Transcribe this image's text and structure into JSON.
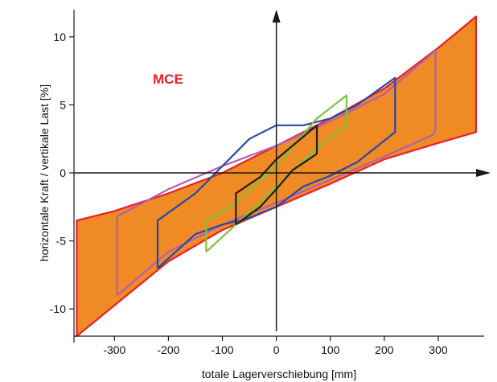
{
  "chart_data": {
    "type": "line",
    "title": "",
    "xlabel": "totale Lagerverschiebung [mm]",
    "ylabel": "horizontale Kraft / vertikale Last  [%]",
    "xlim": [
      -375,
      385
    ],
    "ylim": [
      -12,
      12
    ],
    "x_ticks": [
      -300,
      -200,
      -100,
      0,
      100,
      200,
      300
    ],
    "y_ticks": [
      -10,
      -5,
      0,
      5,
      10
    ],
    "x_tick_labels": [
      "-300",
      "-200",
      "-100",
      "0",
      "100",
      "200",
      "300"
    ],
    "y_tick_labels": [
      "-10",
      "-5",
      "0",
      "5",
      "10"
    ],
    "grid": false,
    "annotation": {
      "text": "MCE",
      "color": "#e8202a"
    },
    "colors": {
      "mce_fill": "#f08a24",
      "mce_line": "#e8202a",
      "purple": "#b060b0",
      "blue": "#2848a8",
      "green": "#7cc23a",
      "black": "#202020",
      "axis": "#1a1a1a"
    },
    "series": [
      {
        "key": "mce",
        "filled": true,
        "x": [
          -370,
          -200,
          -100,
          0,
          100,
          200,
          300,
          370,
          370,
          340,
          300,
          200,
          100,
          0,
          -100,
          -200,
          -300,
          -370,
          -370
        ],
        "y": [
          -12,
          -6.5,
          -4.2,
          -2.5,
          -0.8,
          1.0,
          2.2,
          3.0,
          11.5,
          10.5,
          9.2,
          6.2,
          4.0,
          2.0,
          0.0,
          -1.5,
          -2.8,
          -3.5,
          -12
        ]
      },
      {
        "key": "purple",
        "filled": false,
        "x": [
          -295,
          -200,
          -100,
          0,
          100,
          200,
          290,
          295,
          295,
          200,
          100,
          0,
          -100,
          -200,
          -295,
          -295
        ],
        "y": [
          -9,
          -5.8,
          -3.8,
          -2.2,
          -0.5,
          1.2,
          2.8,
          3.2,
          9,
          5.8,
          3.8,
          2.0,
          0.5,
          -1.2,
          -3.2,
          -9
        ]
      },
      {
        "key": "blue",
        "filled": false,
        "x": [
          -220,
          -150,
          -100,
          -50,
          0,
          50,
          100,
          150,
          220,
          220,
          150,
          100,
          50,
          0,
          -50,
          -100,
          -150,
          -220,
          -220
        ],
        "y": [
          -7,
          -4.5,
          -3.8,
          -3.3,
          -2.5,
          -1.0,
          -0.2,
          0.8,
          3.0,
          7.0,
          5.0,
          4.0,
          3.5,
          3.5,
          2.5,
          0.5,
          -1.5,
          -3.5,
          -7
        ]
      },
      {
        "key": "green",
        "filled": false,
        "x": [
          -130,
          -75,
          0,
          75,
          130,
          130,
          75,
          0,
          -75,
          -130,
          -130
        ],
        "y": [
          -5.8,
          -3.8,
          -1.0,
          1.8,
          3.5,
          5.7,
          4.0,
          0.5,
          -2.2,
          -3.5,
          -5.8
        ]
      },
      {
        "key": "black",
        "filled": false,
        "x": [
          -75,
          -30,
          0,
          30,
          75,
          75,
          30,
          0,
          -30,
          -75,
          -75
        ],
        "y": [
          -3.8,
          -2.5,
          -1.2,
          0.2,
          1.4,
          3.5,
          2.0,
          1.0,
          -0.3,
          -1.5,
          -3.8
        ]
      }
    ]
  }
}
